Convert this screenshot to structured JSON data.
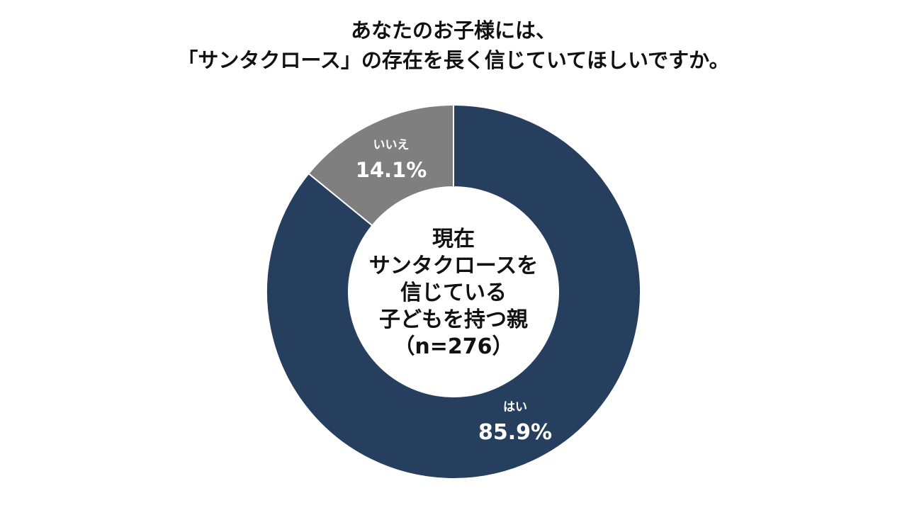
{
  "chart_data": {
    "type": "pie",
    "title_lines": [
      "あなたのお子様には、",
      "「サンタクロース」の存在を長く信じていてほしいですか。"
    ],
    "center_label_lines": [
      "現在",
      "サンタクロースを",
      "信じている",
      "子どもを持つ親",
      "（n=276）"
    ],
    "slices": [
      {
        "label": "はい",
        "value": 85.9,
        "value_label": "85.9%",
        "color": "#263f5f"
      },
      {
        "label": "いいえ",
        "value": 14.1,
        "value_label": "14.1%",
        "color": "#7f7f7f"
      }
    ],
    "donut": true,
    "start": "12 o'clock",
    "direction": "clockwise",
    "legend": "none"
  }
}
